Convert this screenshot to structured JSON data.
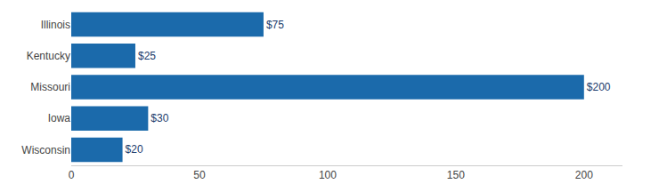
{
  "chart_data": {
    "type": "bar",
    "orientation": "horizontal",
    "categories": [
      "Illinois",
      "Kentucky",
      "Missouri",
      "Iowa",
      "Wisconsin"
    ],
    "values": [
      75,
      25,
      200,
      30,
      20
    ],
    "value_labels": [
      "$75",
      "$25",
      "$200",
      "$30",
      "$20"
    ],
    "data_labels": true,
    "color": "#1B6AAB",
    "xlim": [
      0,
      215
    ],
    "xticks": [
      0,
      50,
      100,
      150,
      200
    ],
    "grid": false
  }
}
